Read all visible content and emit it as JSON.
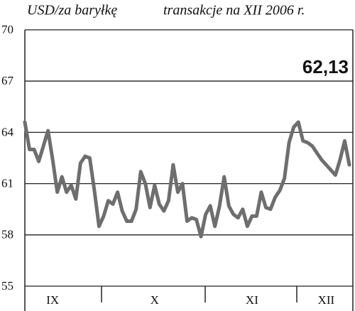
{
  "chart_data": {
    "type": "line",
    "title": "USD/za baryłkę",
    "subtitle": "transakcje na XII 2006 r.",
    "annotation": "62,13",
    "color": "#6e6e6e",
    "ylim": [
      55,
      70
    ],
    "yticks": [
      55,
      58,
      61,
      64,
      67,
      70
    ],
    "grid": true,
    "categories": [
      null,
      null,
      null,
      null,
      null,
      null,
      "IX",
      null,
      null,
      null,
      null,
      null,
      null,
      null,
      null,
      null,
      null,
      null,
      null,
      null,
      null,
      null,
      null,
      null,
      null,
      null,
      null,
      null,
      "X",
      null,
      null,
      null,
      null,
      null,
      null,
      null,
      null,
      null,
      null,
      null,
      null,
      null,
      null,
      null,
      null,
      null,
      null,
      null,
      null,
      "XI",
      null,
      null,
      null,
      null,
      null,
      null,
      null,
      null,
      null,
      null,
      null,
      null,
      null,
      null,
      null,
      "XII",
      null,
      null,
      null,
      null,
      null
    ],
    "values": [
      64.6,
      63.0,
      63.0,
      62.3,
      63.2,
      64.1,
      62.4,
      60.5,
      61.4,
      60.5,
      60.9,
      60.1,
      62.2,
      62.6,
      62.5,
      60.6,
      58.5,
      59.1,
      60.0,
      59.8,
      60.5,
      59.4,
      58.8,
      58.8,
      59.5,
      61.7,
      61.0,
      59.6,
      60.9,
      59.8,
      59.4,
      60.0,
      62.1,
      60.5,
      61.0,
      58.8,
      59.0,
      58.9,
      57.9,
      59.2,
      59.7,
      58.5,
      59.7,
      61.4,
      59.7,
      59.2,
      59.0,
      59.5,
      58.5,
      59.1,
      59.1,
      60.5,
      59.6,
      59.5,
      60.2,
      60.6,
      61.3,
      63.4,
      64.3,
      64.6,
      63.5,
      63.4,
      63.2,
      62.8,
      62.4,
      62.1,
      61.8,
      61.5,
      62.4,
      63.5,
      62.1
    ]
  }
}
